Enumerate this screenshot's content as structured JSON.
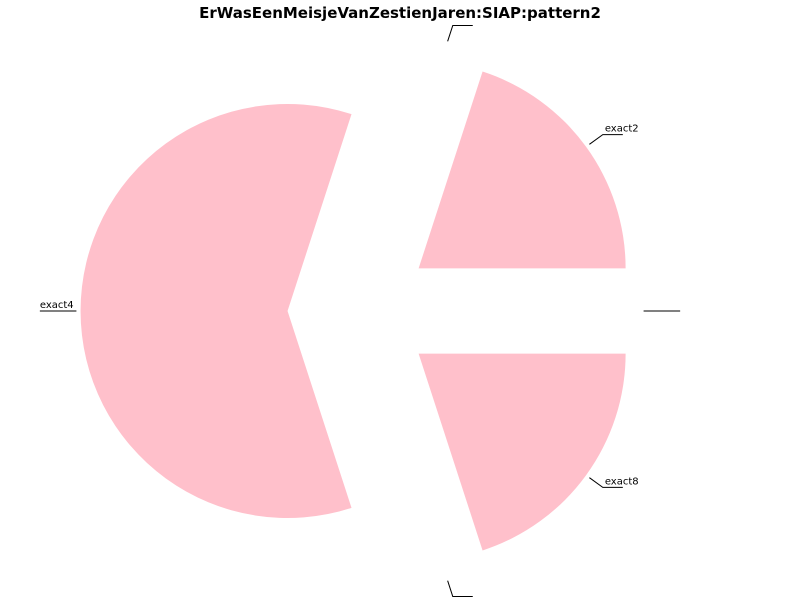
{
  "chart_data": {
    "type": "pie",
    "title": "ErWasEenMeisjeVanZestienJaren:SIAP:pattern2",
    "slices": [
      {
        "label": "",
        "value": 0
      },
      {
        "label": "exact2",
        "value": 20
      },
      {
        "label": "",
        "value": 0
      },
      {
        "label": "exact8",
        "value": 20
      },
      {
        "label": "",
        "value": 0
      },
      {
        "label": "exact4",
        "value": 60
      }
    ],
    "start_angle": "counterclockwise from 72° above the positive x-axis",
    "color": "#ffc0cb",
    "exploded": true
  }
}
